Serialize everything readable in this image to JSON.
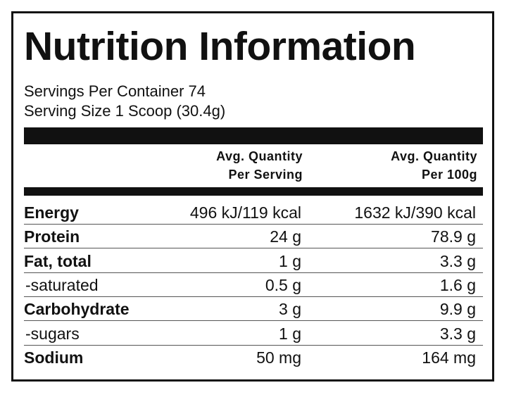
{
  "title": "Nutrition Information",
  "servings": [
    "Servings Per Container 74",
    "Serving Size 1 Scoop (30.4g)"
  ],
  "header": [
    [
      "Avg. Quantity",
      "Per Serving"
    ],
    [
      "Avg. Quantity",
      "Per 100g"
    ]
  ],
  "rows": [
    [
      "Energy",
      "496 kJ/119 kcal",
      "1632 kJ/390 kcal"
    ],
    [
      "Protein",
      "24 g",
      "78.9 g"
    ],
    [
      "Fat, total",
      "1 g",
      "3.3 g"
    ],
    [
      "-saturated",
      "0.5 g",
      "1.6 g"
    ],
    [
      "Carbohydrate",
      "3 g",
      "9.9 g"
    ],
    [
      "-sugars",
      "1 g",
      "3.3 g"
    ],
    [
      "Sodium",
      "50 mg",
      "164 mg"
    ]
  ]
}
